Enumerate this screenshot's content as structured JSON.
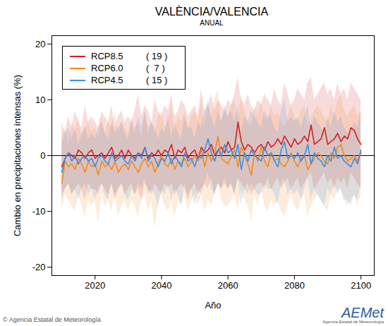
{
  "chart_data": {
    "type": "line",
    "title": "VALÈNCIA/VALENCIA",
    "subtitle": "ANUAL",
    "y_label": "Cambio en precipitaciones intensas (%)",
    "x_label": "Año",
    "caption": "© Agencia Estatal de Meteorología",
    "logo": {
      "text": "AEMet",
      "subtitle": "Agencia Estatal de Meteorología"
    },
    "legend": "upper left",
    "xlim": [
      2007,
      2104
    ],
    "xticks": [
      2020,
      2040,
      2060,
      2080,
      2100
    ],
    "ylim": [
      -21.5,
      21.5
    ],
    "yticks": [
      -20,
      -10,
      0,
      10,
      20
    ],
    "reference_line": 0,
    "x": [
      2010,
      2011,
      2012,
      2013,
      2014,
      2015,
      2016,
      2017,
      2018,
      2019,
      2020,
      2021,
      2022,
      2023,
      2024,
      2025,
      2026,
      2027,
      2028,
      2029,
      2030,
      2031,
      2032,
      2033,
      2034,
      2035,
      2036,
      2037,
      2038,
      2039,
      2040,
      2041,
      2042,
      2043,
      2044,
      2045,
      2046,
      2047,
      2048,
      2049,
      2050,
      2051,
      2052,
      2053,
      2054,
      2055,
      2056,
      2057,
      2058,
      2059,
      2060,
      2061,
      2062,
      2063,
      2064,
      2065,
      2066,
      2067,
      2068,
      2069,
      2070,
      2071,
      2072,
      2073,
      2074,
      2075,
      2076,
      2077,
      2078,
      2079,
      2080,
      2081,
      2082,
      2083,
      2084,
      2085,
      2086,
      2087,
      2088,
      2089,
      2090,
      2091,
      2092,
      2093,
      2094,
      2095,
      2096,
      2097,
      2098,
      2099,
      2100
    ],
    "series": [
      {
        "name": "RCP8.5",
        "count_label": "( 19 )",
        "color": "#d42020",
        "values": [
          -2,
          -0.5,
          0.5,
          0,
          -0.5,
          1,
          0.5,
          -0.5,
          0.5,
          1,
          -0.5,
          0,
          0.5,
          -0.5,
          0.5,
          1.5,
          -0.5,
          0,
          1,
          -0.5,
          1,
          0,
          -0.5,
          0.5,
          0,
          1.5,
          -0.5,
          0.5,
          0,
          1,
          0,
          1,
          0.5,
          2,
          -0.5,
          1,
          0.5,
          1.5,
          -0.5,
          0.5,
          1,
          -0.5,
          1.5,
          0.5,
          1,
          2,
          0,
          1,
          1.5,
          0.5,
          2.5,
          1,
          1.5,
          6,
          2.5,
          1,
          2,
          1.5,
          0.5,
          1.5,
          2,
          1,
          2.5,
          1.5,
          2,
          3,
          2,
          3.5,
          2.5,
          1.5,
          3,
          2,
          2.5,
          3.5,
          2.5,
          5.5,
          2,
          2.5,
          3,
          5,
          2,
          2.5,
          3,
          4,
          2.5,
          3.5,
          3,
          5,
          4.5,
          3,
          2
        ],
        "lower": [
          -7,
          -6,
          -5,
          -7,
          -6,
          -5,
          -6,
          -8,
          -5,
          -6,
          -6,
          -7,
          -5,
          -6,
          -7,
          -5,
          -8,
          -6,
          -5,
          -7,
          -6,
          -5,
          -7,
          -6,
          -8,
          -5,
          -6,
          -7,
          -5,
          -6,
          -7,
          -5,
          -6,
          -5,
          -7,
          -6,
          -5,
          -6,
          -8,
          -6,
          -5,
          -7,
          -6,
          -5,
          -6,
          -4,
          -7,
          -5,
          -6,
          -5,
          -6,
          -5,
          -7,
          -4,
          -5,
          -6,
          -5,
          -7,
          -6,
          -5,
          -5,
          -6,
          -4,
          -6,
          -5,
          -4,
          -6,
          -5,
          -4,
          -6,
          -5,
          -4,
          -6,
          -5,
          -4,
          -3,
          -6,
          -5,
          -4,
          -3,
          -5,
          -4,
          -6,
          -4,
          -5,
          -4,
          -6,
          -3,
          -4,
          -5,
          -6
        ],
        "upper": [
          6,
          4,
          7,
          5,
          8,
          6,
          5,
          9,
          6,
          7,
          6,
          5,
          8,
          7,
          6,
          9,
          5,
          7,
          8,
          6,
          7,
          6,
          8,
          11,
          7,
          9,
          8,
          6,
          10,
          8,
          7,
          9,
          8,
          11,
          7,
          8,
          10,
          9,
          7,
          8,
          9,
          7,
          12,
          8,
          9,
          11,
          8,
          10,
          9,
          8,
          10,
          9,
          11,
          14,
          10,
          9,
          11,
          9,
          8,
          10,
          9,
          11,
          10,
          9,
          12,
          10,
          9,
          13,
          11,
          9,
          10,
          12,
          11,
          10,
          13,
          14,
          10,
          11,
          12,
          13,
          11,
          12,
          10,
          13,
          11,
          12,
          10,
          13,
          12,
          11,
          10
        ]
      },
      {
        "name": "RCP6.0",
        "count_label": "(  7 )",
        "color": "#f5891e",
        "values": [
          -5,
          -1,
          -2,
          -1.5,
          -2.5,
          -0.5,
          -1.5,
          -3,
          -1,
          -2,
          -1.5,
          -3.5,
          -1,
          -2,
          -1.5,
          -2.5,
          -1,
          -3,
          -2,
          -1.5,
          -2.5,
          -1,
          -2,
          -3,
          -1.5,
          -0.5,
          -2,
          -1,
          -3,
          -1.5,
          0,
          -1.5,
          -2,
          -0.5,
          -2.5,
          -1,
          -1.5,
          -0.5,
          -2,
          -1,
          0,
          -1,
          1,
          -2,
          0.5,
          -1,
          0.5,
          3.5,
          -0.5,
          -1,
          -1.5,
          0,
          1,
          -2,
          1.5,
          0,
          -1.5,
          -3.5,
          0.5,
          -1,
          1.5,
          -1,
          -2,
          0.5,
          -1,
          -0.5,
          -1.5,
          -2,
          -1,
          0.5,
          -1,
          -2,
          -0.5,
          0,
          -2.5,
          -1.5,
          -0.5,
          0.5,
          0,
          -1,
          -1.5,
          0.5,
          -0.5,
          1.5,
          2,
          0,
          -1,
          -0.5,
          0,
          -1,
          0.5
        ],
        "lower": [
          -10,
          -7,
          -8,
          -9,
          -10,
          -7,
          -9,
          -11,
          -8,
          -9,
          -8,
          -12,
          -7,
          -9,
          -8,
          -10,
          -7,
          -11,
          -9,
          -8,
          -10,
          -8,
          -9,
          -11,
          -8,
          -7,
          -10,
          -8,
          -13,
          -9,
          -7,
          -9,
          -10,
          -8,
          -11,
          -8,
          -9,
          -7,
          -10,
          -8,
          -7,
          -9,
          -7,
          -10,
          -8,
          -9,
          -7,
          -5,
          -8,
          -9,
          -9,
          -8,
          -7,
          -10,
          -6,
          -8,
          -9,
          -12,
          -7,
          -9,
          -6,
          -9,
          -10,
          -8,
          -9,
          -8,
          -10,
          -11,
          -9,
          -7,
          -9,
          -10,
          -8,
          -7,
          -11,
          -9,
          -8,
          -7,
          -8,
          -9,
          -10,
          -7,
          -8,
          -6,
          -6,
          -8,
          -9,
          -8,
          -7,
          -9,
          -7
        ],
        "upper": [
          3,
          5,
          2,
          6,
          4,
          7,
          3,
          5,
          6,
          4,
          5,
          3,
          7,
          4,
          6,
          5,
          8,
          4,
          6,
          5,
          4,
          7,
          5,
          6,
          3,
          8,
          5,
          6,
          4,
          7,
          8,
          5,
          6,
          9,
          4,
          7,
          6,
          8,
          5,
          7,
          8,
          6,
          10,
          5,
          9,
          7,
          10,
          12,
          6,
          8,
          7,
          9,
          10,
          6,
          11,
          8,
          6,
          5,
          9,
          7,
          10,
          7,
          6,
          9,
          7,
          8,
          6,
          5,
          7,
          9,
          7,
          6,
          8,
          9,
          5,
          7,
          8,
          9,
          8,
          7,
          6,
          9,
          7,
          10,
          11,
          8,
          7,
          8,
          9,
          7,
          8
        ]
      },
      {
        "name": "RCP4.5",
        "count_label": "( 15 )",
        "color": "#3a8ee6",
        "values": [
          -3,
          -0.5,
          0.5,
          -1,
          0,
          -1.5,
          -0.5,
          0,
          -1,
          -0.5,
          -2,
          -0.5,
          0,
          -1,
          -1.5,
          0.5,
          -1,
          -0.5,
          0,
          -1,
          -1.5,
          0,
          -1,
          0.5,
          -0.5,
          1.5,
          -1,
          0,
          -0.5,
          -2,
          -0.5,
          -1,
          0.5,
          -1.5,
          0,
          -1,
          -2,
          0.5,
          -1,
          -0.5,
          -2,
          0,
          -0.5,
          1,
          3,
          0.5,
          -1,
          1,
          0,
          2,
          0.5,
          1,
          -0.5,
          2,
          -2.5,
          0.5,
          -1,
          1,
          0,
          -0.5,
          -1,
          1.5,
          0,
          0.5,
          -1,
          -2,
          1,
          2.5,
          -0.5,
          0,
          -0.5,
          0.5,
          -1,
          0,
          2,
          -1.5,
          0.5,
          -0.5,
          -1,
          -2,
          0,
          -1,
          1.5,
          -0.5,
          0,
          -1,
          -1.5,
          -2,
          -0.5,
          -1.5,
          1
        ],
        "lower": [
          -8,
          -6,
          -5,
          -7,
          -6,
          -8,
          -6,
          -5,
          -7,
          -6,
          -8,
          -6,
          -5,
          -7,
          -8,
          -5,
          -7,
          -6,
          -5,
          -7,
          -8,
          -6,
          -7,
          -5,
          -6,
          -4,
          -7,
          -6,
          -7,
          -9,
          -6,
          -7,
          -5,
          -8,
          -6,
          -7,
          -9,
          -5,
          -7,
          -6,
          -9,
          -6,
          -7,
          -5,
          -3,
          -6,
          -7,
          -5,
          -6,
          -4,
          -6,
          -5,
          -7,
          -4,
          -9,
          -6,
          -7,
          -5,
          -6,
          -7,
          -7,
          -5,
          -6,
          -6,
          -7,
          -9,
          -5,
          -4,
          -7,
          -6,
          -7,
          -6,
          -8,
          -6,
          -4,
          -8,
          -6,
          -7,
          -8,
          -9,
          -6,
          -7,
          -5,
          -7,
          -6,
          -8,
          -8,
          -9,
          -7,
          -8,
          -5
        ],
        "upper": [
          2,
          4,
          5,
          3,
          5,
          2,
          4,
          5,
          3,
          4,
          3,
          5,
          6,
          4,
          3,
          6,
          4,
          5,
          6,
          4,
          3,
          6,
          4,
          7,
          5,
          8,
          4,
          6,
          5,
          3,
          5,
          4,
          7,
          3,
          6,
          4,
          3,
          7,
          5,
          5,
          3,
          6,
          5,
          8,
          10,
          7,
          5,
          8,
          6,
          9,
          7,
          8,
          6,
          9,
          4,
          7,
          6,
          8,
          7,
          6,
          5,
          8,
          7,
          7,
          5,
          4,
          8,
          10,
          6,
          7,
          6,
          7,
          5,
          7,
          9,
          5,
          7,
          6,
          5,
          4,
          7,
          5,
          8,
          6,
          7,
          5,
          4,
          4,
          6,
          5,
          8
        ]
      }
    ]
  }
}
